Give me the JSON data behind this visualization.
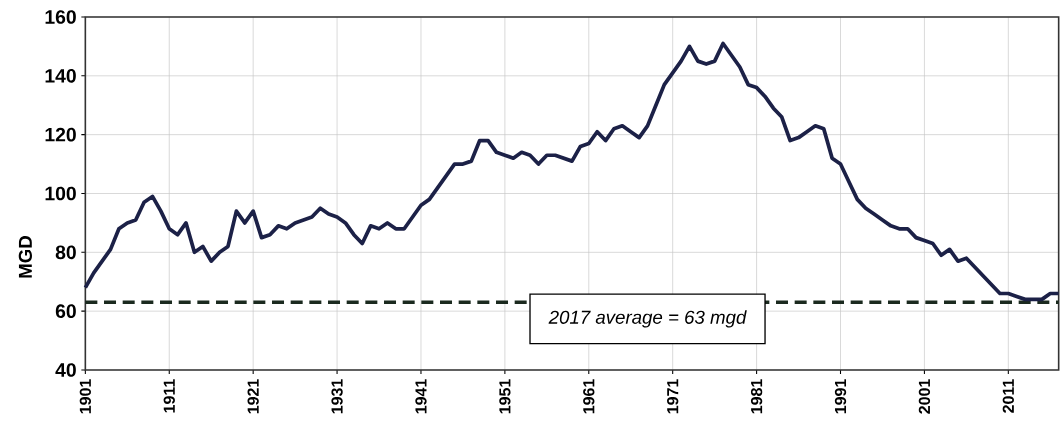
{
  "chart_data": {
    "type": "line",
    "ylabel": "MGD",
    "x": [
      1901,
      1902,
      1903,
      1904,
      1905,
      1906,
      1907,
      1908,
      1909,
      1910,
      1911,
      1912,
      1913,
      1914,
      1915,
      1916,
      1917,
      1918,
      1919,
      1920,
      1921,
      1922,
      1923,
      1924,
      1925,
      1926,
      1927,
      1928,
      1929,
      1930,
      1931,
      1932,
      1933,
      1934,
      1935,
      1936,
      1937,
      1938,
      1939,
      1940,
      1941,
      1942,
      1943,
      1944,
      1945,
      1946,
      1947,
      1948,
      1949,
      1950,
      1951,
      1952,
      1953,
      1954,
      1955,
      1956,
      1957,
      1958,
      1959,
      1960,
      1961,
      1962,
      1963,
      1964,
      1965,
      1966,
      1967,
      1968,
      1969,
      1970,
      1971,
      1972,
      1973,
      1974,
      1975,
      1976,
      1977,
      1978,
      1979,
      1980,
      1981,
      1982,
      1983,
      1984,
      1985,
      1986,
      1987,
      1988,
      1989,
      1990,
      1991,
      1992,
      1993,
      1994,
      1995,
      1996,
      1997,
      1998,
      1999,
      2000,
      2001,
      2002,
      2003,
      2004,
      2005,
      2006,
      2007,
      2008,
      2009,
      2010,
      2011,
      2012,
      2013,
      2014,
      2015,
      2016,
      2017
    ],
    "series": [
      {
        "color": "#1c2147",
        "values": [
          68,
          73,
          77,
          81,
          88,
          90,
          91,
          97,
          99,
          94,
          88,
          86,
          90,
          80,
          82,
          77,
          80,
          82,
          94,
          90,
          94,
          85,
          86,
          89,
          88,
          90,
          91,
          92,
          95,
          93,
          92,
          90,
          86,
          83,
          89,
          88,
          90,
          88,
          88,
          92,
          96,
          98,
          102,
          106,
          110,
          110,
          111,
          118,
          118,
          114,
          113,
          112,
          114,
          113,
          110,
          113,
          113,
          112,
          111,
          116,
          117,
          121,
          118,
          122,
          123,
          121,
          119,
          123,
          130,
          137,
          141,
          145,
          150,
          145,
          144,
          145,
          151,
          147,
          143,
          137,
          136,
          133,
          129,
          126,
          118,
          119,
          121,
          123,
          122,
          112,
          110,
          104,
          98,
          95,
          93,
          91,
          89,
          88,
          88,
          85,
          84,
          83,
          79,
          81,
          77,
          78,
          75,
          72,
          69,
          66,
          66,
          65,
          64,
          64,
          64,
          66,
          66
        ]
      }
    ],
    "xlim": [
      1901,
      2017
    ],
    "ylim": [
      40,
      160
    ],
    "xticks": [
      1901,
      1911,
      1921,
      1931,
      1941,
      1951,
      1961,
      1971,
      1981,
      1991,
      2001,
      2011
    ],
    "yticks": [
      40,
      60,
      80,
      100,
      120,
      140,
      160
    ],
    "grid": true,
    "marker": "none",
    "line_style": "solid",
    "ref_lines": [
      {
        "axis": "y",
        "value": 63,
        "label": "2017 average = 63 mgd",
        "color": "#1b2a1f",
        "line_style": "dashed"
      }
    ]
  }
}
